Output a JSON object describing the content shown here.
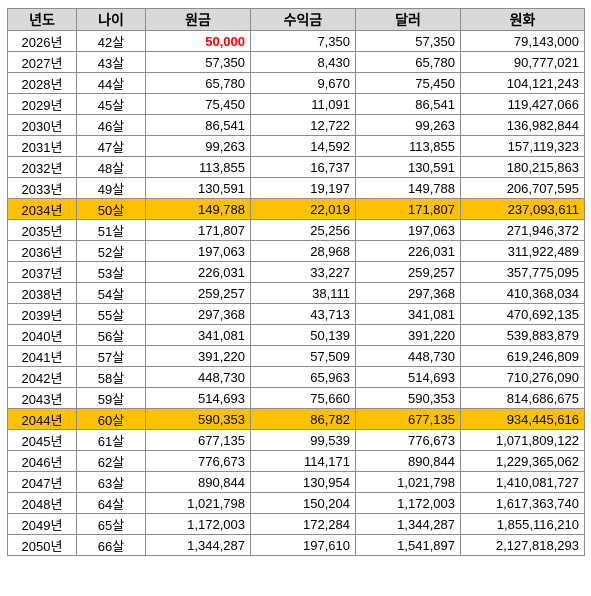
{
  "headers": [
    "년도",
    "나이",
    "원금",
    "수익금",
    "달러",
    "원화"
  ],
  "rows": [
    {
      "year": "2026년",
      "age": "42살",
      "principal": "50,000",
      "profit": "7,350",
      "dollar": "57,350",
      "won": "79,143,000"
    },
    {
      "year": "2027년",
      "age": "43살",
      "principal": "57,350",
      "profit": "8,430",
      "dollar": "65,780",
      "won": "90,777,021"
    },
    {
      "year": "2028년",
      "age": "44살",
      "principal": "65,780",
      "profit": "9,670",
      "dollar": "75,450",
      "won": "104,121,243"
    },
    {
      "year": "2029년",
      "age": "45살",
      "principal": "75,450",
      "profit": "11,091",
      "dollar": "86,541",
      "won": "119,427,066"
    },
    {
      "year": "2030년",
      "age": "46살",
      "principal": "86,541",
      "profit": "12,722",
      "dollar": "99,263",
      "won": "136,982,844"
    },
    {
      "year": "2031년",
      "age": "47살",
      "principal": "99,263",
      "profit": "14,592",
      "dollar": "113,855",
      "won": "157,119,323"
    },
    {
      "year": "2032년",
      "age": "48살",
      "principal": "113,855",
      "profit": "16,737",
      "dollar": "130,591",
      "won": "180,215,863"
    },
    {
      "year": "2033년",
      "age": "49살",
      "principal": "130,591",
      "profit": "19,197",
      "dollar": "149,788",
      "won": "206,707,595"
    },
    {
      "year": "2034년",
      "age": "50살",
      "principal": "149,788",
      "profit": "22,019",
      "dollar": "171,807",
      "won": "237,093,611",
      "highlight": true
    },
    {
      "year": "2035년",
      "age": "51살",
      "principal": "171,807",
      "profit": "25,256",
      "dollar": "197,063",
      "won": "271,946,372"
    },
    {
      "year": "2036년",
      "age": "52살",
      "principal": "197,063",
      "profit": "28,968",
      "dollar": "226,031",
      "won": "311,922,489"
    },
    {
      "year": "2037년",
      "age": "53살",
      "principal": "226,031",
      "profit": "33,227",
      "dollar": "259,257",
      "won": "357,775,095"
    },
    {
      "year": "2038년",
      "age": "54살",
      "principal": "259,257",
      "profit": "38,111",
      "dollar": "297,368",
      "won": "410,368,034"
    },
    {
      "year": "2039년",
      "age": "55살",
      "principal": "297,368",
      "profit": "43,713",
      "dollar": "341,081",
      "won": "470,692,135"
    },
    {
      "year": "2040년",
      "age": "56살",
      "principal": "341,081",
      "profit": "50,139",
      "dollar": "391,220",
      "won": "539,883,879"
    },
    {
      "year": "2041년",
      "age": "57살",
      "principal": "391,220",
      "profit": "57,509",
      "dollar": "448,730",
      "won": "619,246,809"
    },
    {
      "year": "2042년",
      "age": "58살",
      "principal": "448,730",
      "profit": "65,963",
      "dollar": "514,693",
      "won": "710,276,090"
    },
    {
      "year": "2043년",
      "age": "59살",
      "principal": "514,693",
      "profit": "75,660",
      "dollar": "590,353",
      "won": "814,686,675"
    },
    {
      "year": "2044년",
      "age": "60살",
      "principal": "590,353",
      "profit": "86,782",
      "dollar": "677,135",
      "won": "934,445,616",
      "highlight": true
    },
    {
      "year": "2045년",
      "age": "61살",
      "principal": "677,135",
      "profit": "99,539",
      "dollar": "776,673",
      "won": "1,071,809,122"
    },
    {
      "year": "2046년",
      "age": "62살",
      "principal": "776,673",
      "profit": "114,171",
      "dollar": "890,844",
      "won": "1,229,365,062"
    },
    {
      "year": "2047년",
      "age": "63살",
      "principal": "890,844",
      "profit": "130,954",
      "dollar": "1,021,798",
      "won": "1,410,081,727"
    },
    {
      "year": "2048년",
      "age": "64살",
      "principal": "1,021,798",
      "profit": "150,204",
      "dollar": "1,172,003",
      "won": "1,617,363,740"
    },
    {
      "year": "2049년",
      "age": "65살",
      "principal": "1,172,003",
      "profit": "172,284",
      "dollar": "1,344,287",
      "won": "1,855,116,210"
    },
    {
      "year": "2050년",
      "age": "66살",
      "principal": "1,344,287",
      "profit": "197,610",
      "dollar": "1,541,897",
      "won": "2,127,818,293"
    }
  ],
  "colors": {
    "highlight_row": "#ffc000",
    "header_bg": "#d9d9d9",
    "first_principal_text": "#ff0000"
  }
}
